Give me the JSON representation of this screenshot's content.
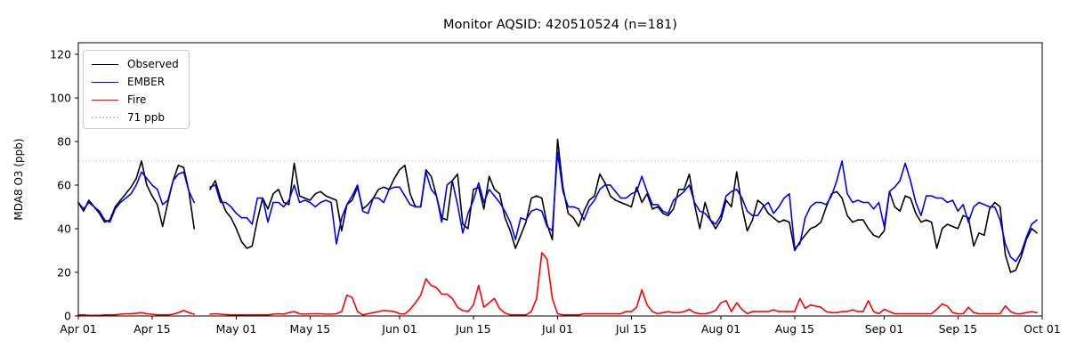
{
  "figure": {
    "title": "Monitor AQSID: 420510524 (n=181)",
    "ylabel": "MDA8 O3 (ppb)"
  },
  "chart_data": {
    "type": "line",
    "title": "Monitor AQSID: 420510524 (n=181)",
    "xlabel": "",
    "ylabel": "MDA8 O3 (ppb)",
    "ylim": [
      0,
      125.2
    ],
    "yticks": [
      0,
      20,
      40,
      60,
      80,
      100,
      120
    ],
    "x_unit": "day index from Apr 01",
    "x_domain_days": [
      0,
      183
    ],
    "xticks": [
      {
        "day": 0,
        "label": "Apr 01"
      },
      {
        "day": 14,
        "label": "Apr 15"
      },
      {
        "day": 30,
        "label": "May 01"
      },
      {
        "day": 44,
        "label": "May 15"
      },
      {
        "day": 61,
        "label": "Jun 01"
      },
      {
        "day": 75,
        "label": "Jun 15"
      },
      {
        "day": 91,
        "label": "Jul 01"
      },
      {
        "day": 105,
        "label": "Jul 15"
      },
      {
        "day": 122,
        "label": "Aug 01"
      },
      {
        "day": 136,
        "label": "Aug 15"
      },
      {
        "day": 153,
        "label": "Sep 01"
      },
      {
        "day": 167,
        "label": "Sep 15"
      },
      {
        "day": 183,
        "label": "Oct 01"
      }
    ],
    "grid": false,
    "legend_position": "upper left",
    "threshold": {
      "value": 71,
      "label": "71 ppb",
      "color": "#c8c8c8",
      "style": "dotted"
    },
    "legend": [
      {
        "label": "Observed",
        "color": "#000000",
        "style": "solid"
      },
      {
        "label": "EMBER",
        "color": "#0000ff",
        "style": "solid"
      },
      {
        "label": "Fire",
        "color": "#ff0000",
        "style": "solid"
      },
      {
        "label": "71 ppb",
        "color": "#c8c8c8",
        "style": "dotted"
      }
    ],
    "missing_days_note": "gap Apr 24 - Apr 25 (null values)",
    "series": [
      {
        "name": "Observed",
        "color": "#000000",
        "values": [
          52,
          48,
          53,
          50,
          47,
          43,
          44,
          50,
          53,
          56,
          59,
          63,
          71,
          60,
          55,
          51,
          41,
          52,
          62,
          69,
          68,
          57,
          40,
          null,
          null,
          58,
          62,
          54,
          48,
          45,
          40,
          34,
          31,
          32,
          44,
          54,
          49,
          56,
          58,
          52,
          51,
          70,
          55,
          54,
          53,
          56,
          57,
          55,
          54,
          53,
          39,
          51,
          53,
          59,
          49,
          51,
          54,
          58,
          59,
          58,
          63,
          67,
          69,
          56,
          50,
          50,
          67,
          64,
          55,
          45,
          44,
          62,
          65,
          42,
          40,
          58,
          59,
          49,
          64,
          58,
          56,
          45,
          39,
          31,
          37,
          43,
          54,
          55,
          54,
          42,
          35,
          81,
          59,
          47,
          45,
          41,
          48,
          53,
          55,
          65,
          61,
          55,
          53,
          52,
          51,
          50,
          59,
          52,
          56,
          49,
          50,
          47,
          46,
          49,
          58,
          58,
          65,
          51,
          40,
          52,
          44,
          40,
          44,
          53,
          50,
          66,
          50,
          39,
          44,
          53,
          51,
          47,
          45,
          43,
          44,
          43,
          30,
          34,
          37,
          40,
          41,
          43,
          50,
          56,
          57,
          54,
          46,
          43,
          44,
          44,
          40,
          37,
          36,
          39,
          57,
          50,
          48,
          55,
          54,
          47,
          43,
          44,
          43,
          31,
          40,
          42,
          41,
          40,
          46,
          45,
          32,
          38,
          37,
          49,
          52,
          50,
          28,
          20,
          21,
          27,
          35,
          40,
          38
        ]
      },
      {
        "name": "EMBER",
        "color": "#0000ff",
        "values": [
          52,
          49,
          52,
          50,
          48,
          44,
          43,
          49,
          52,
          54,
          56,
          60,
          66,
          63,
          60,
          58,
          51,
          53,
          62,
          65,
          66,
          57,
          52,
          null,
          null,
          59,
          60,
          52,
          52,
          50,
          47,
          45,
          45,
          42,
          54,
          54,
          43,
          52,
          52,
          50,
          53,
          60,
          52,
          53,
          52,
          50,
          52,
          53,
          52,
          33,
          45,
          51,
          55,
          60,
          48,
          47,
          54,
          54,
          52,
          58,
          59,
          59,
          55,
          51,
          50,
          50,
          66,
          58,
          55,
          43,
          60,
          62,
          51,
          38,
          47,
          53,
          61,
          52,
          58,
          55,
          52,
          48,
          43,
          35,
          45,
          44,
          48,
          49,
          48,
          41,
          39,
          75,
          57,
          50,
          50,
          49,
          44,
          50,
          53,
          58,
          60,
          60,
          57,
          54,
          54,
          56,
          57,
          64,
          57,
          51,
          51,
          48,
          47,
          53,
          55,
          57,
          60,
          52,
          48,
          47,
          44,
          42,
          46,
          55,
          57,
          58,
          54,
          48,
          46,
          46,
          50,
          52,
          47,
          50,
          54,
          56,
          31,
          33,
          45,
          50,
          52,
          52,
          51,
          55,
          62,
          71,
          56,
          52,
          53,
          52,
          52,
          49,
          52,
          41,
          57,
          59,
          62,
          70,
          62,
          52,
          46,
          55,
          55,
          54,
          54,
          52,
          53,
          48,
          51,
          43,
          50,
          52,
          51,
          50,
          50,
          44,
          33,
          27,
          25,
          29,
          36,
          42,
          44
        ]
      },
      {
        "name": "Fire",
        "color": "#ff0000",
        "values": [
          0.5,
          0.5,
          0.3,
          0.3,
          0.3,
          0.5,
          0.5,
          0.5,
          0.8,
          1,
          1,
          1.2,
          1.5,
          1,
          0.8,
          0.5,
          0.5,
          0.5,
          0.8,
          1.5,
          2.5,
          1.5,
          0.8,
          null,
          null,
          0.8,
          1,
          0.8,
          0.6,
          0.5,
          0.5,
          0.5,
          0.5,
          0.5,
          0.5,
          0.5,
          0.5,
          0.8,
          1,
          0.8,
          1.5,
          2,
          1,
          0.8,
          1,
          1,
          1,
          0.8,
          0.8,
          1,
          2,
          9.5,
          8.5,
          2,
          0.5,
          1,
          1.5,
          2,
          2.5,
          2.3,
          2,
          1,
          0.9,
          3,
          6,
          9.5,
          17,
          14,
          13,
          10,
          10,
          8,
          4,
          2.5,
          2,
          5,
          14,
          4,
          6,
          8,
          3.4,
          1.3,
          0.5,
          0.5,
          0.5,
          0.5,
          2,
          8,
          29,
          26,
          8,
          1,
          0.5,
          0.5,
          0.5,
          0.5,
          1,
          1,
          1,
          1,
          1,
          1,
          1,
          1,
          2,
          2,
          4,
          12,
          5,
          2,
          1,
          1.5,
          2,
          1.5,
          1.5,
          2,
          3,
          1.5,
          1,
          1,
          1.5,
          2.5,
          6,
          7,
          2,
          6,
          3,
          1,
          2,
          2,
          2,
          2,
          2.8,
          2,
          2,
          2,
          2,
          8,
          3.5,
          5,
          4.5,
          4,
          2,
          1.5,
          1.5,
          2,
          2,
          2.8,
          2,
          2,
          7,
          2,
          1,
          3,
          2,
          1,
          1,
          1,
          1,
          1,
          1,
          1,
          1,
          3,
          5.5,
          4.5,
          1.5,
          1,
          1,
          4,
          1.5,
          1,
          1,
          1,
          1,
          1,
          4.6,
          2,
          1,
          1,
          1.5,
          2,
          1.5
        ]
      }
    ]
  }
}
